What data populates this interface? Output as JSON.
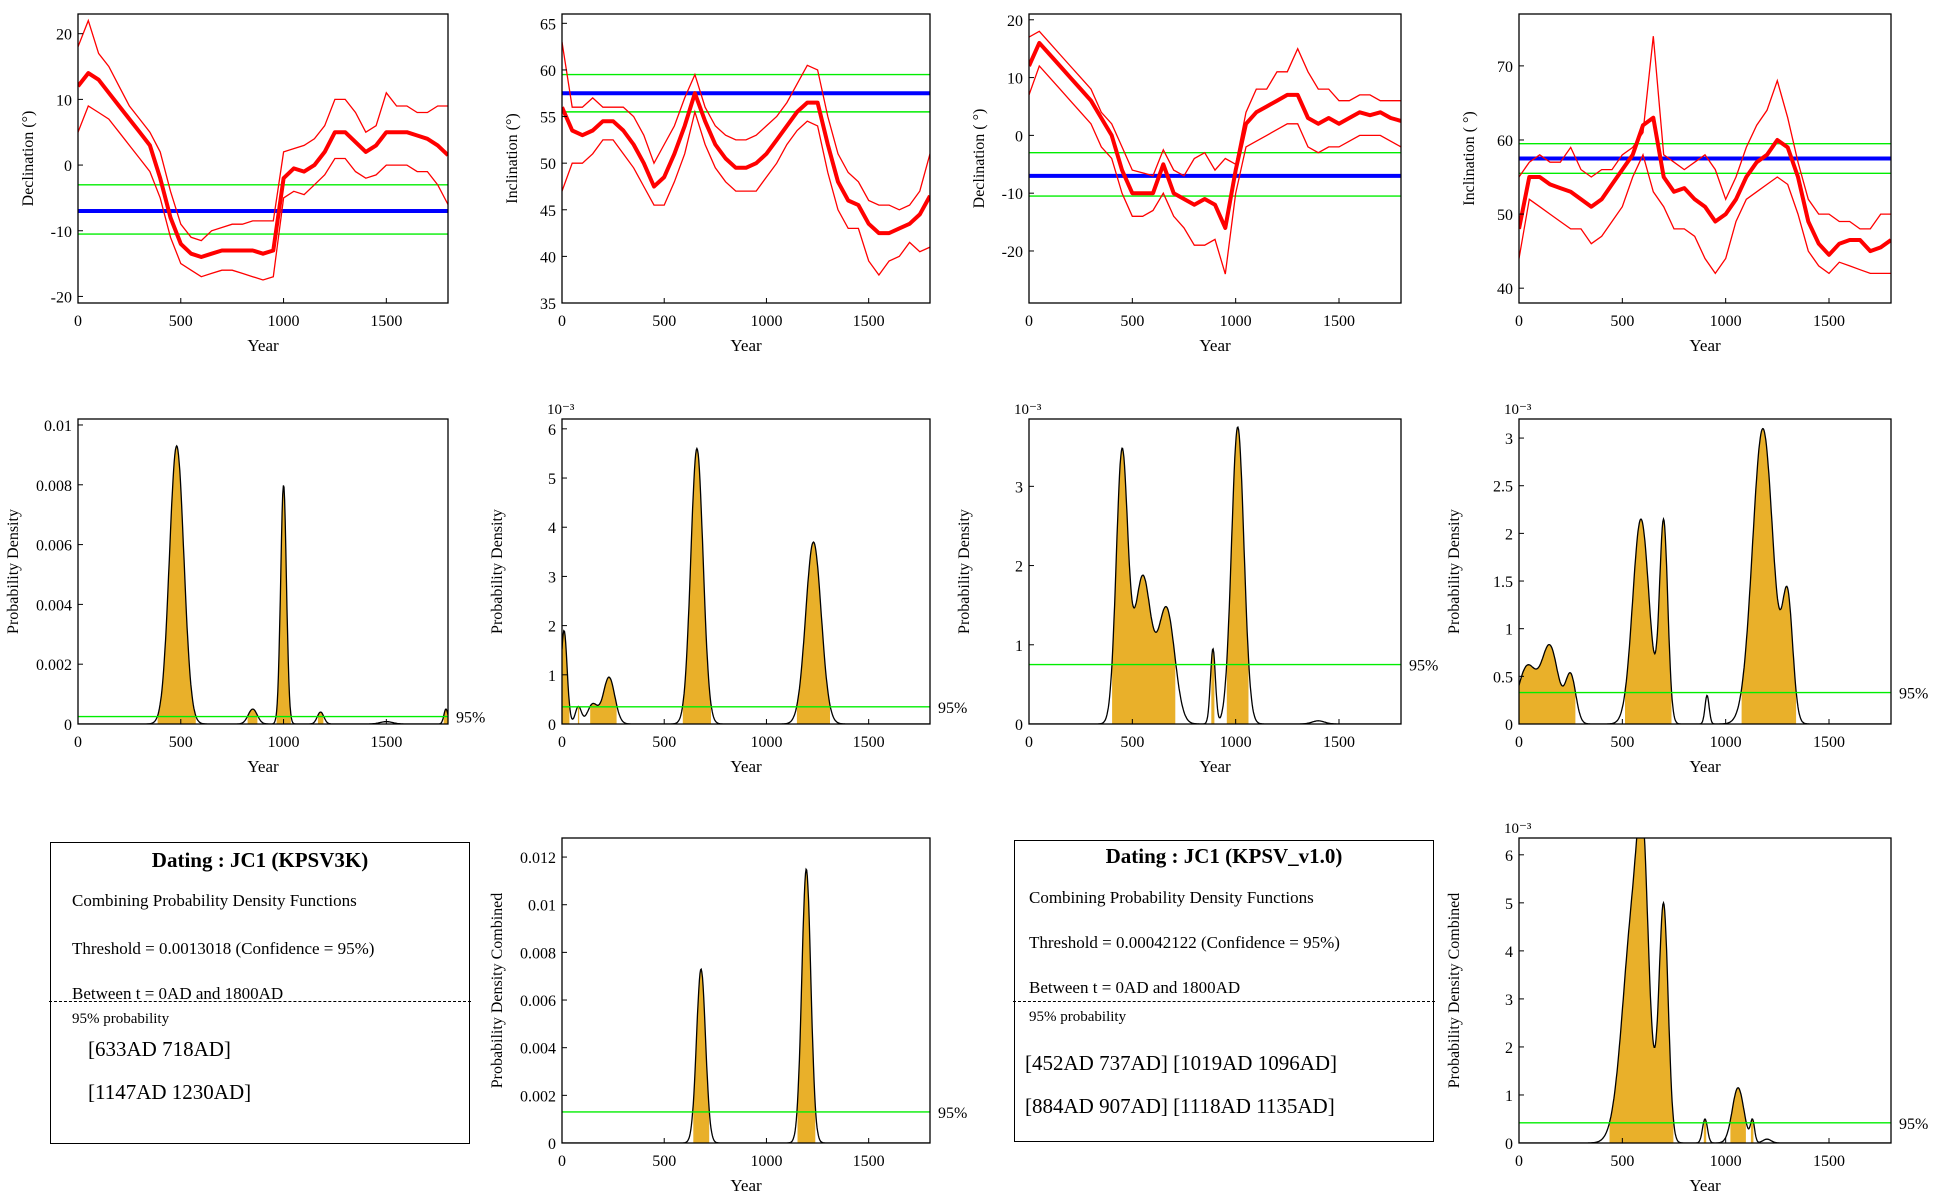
{
  "colors": {
    "curve": "#ff0000",
    "reference": "#0000ff",
    "bounds": "#00ee00",
    "fill": "#e9b02a",
    "outline": "#000000"
  },
  "charts": [
    {
      "id": "decl-1",
      "type": "line",
      "ylabel": "Declination (°)",
      "xlabel": "Year",
      "xlim": [
        0,
        1800
      ],
      "xticks": [
        0,
        500,
        1000,
        1500
      ],
      "ylim": [
        -21,
        23
      ],
      "yticks": [
        -20,
        -10,
        0,
        10,
        20
      ],
      "reference": -7,
      "bounds": [
        -3,
        -10.5
      ],
      "x": [
        0,
        50,
        100,
        150,
        200,
        250,
        300,
        350,
        400,
        450,
        500,
        550,
        600,
        650,
        700,
        750,
        800,
        850,
        900,
        950,
        1000,
        1050,
        1100,
        1150,
        1200,
        1250,
        1300,
        1350,
        1400,
        1450,
        1500,
        1550,
        1600,
        1650,
        1700,
        1750,
        1800
      ],
      "upper": [
        18,
        22,
        17,
        15,
        12,
        9,
        7,
        5,
        2,
        -4,
        -9,
        -11,
        -11.5,
        -10,
        -9.5,
        -9,
        -9,
        -8.5,
        -8.5,
        -8.5,
        2,
        2.5,
        3,
        4,
        6,
        10,
        10,
        8,
        5,
        6,
        11,
        9,
        9,
        8,
        8,
        9,
        9
      ],
      "mean": [
        12,
        14,
        13,
        11,
        9,
        7,
        5,
        3,
        -2,
        -8,
        -12,
        -13.5,
        -14,
        -13.5,
        -13,
        -13,
        -13,
        -13,
        -13.5,
        -13,
        -2,
        -0.5,
        -1,
        0,
        2,
        5,
        5,
        3.5,
        2,
        3,
        5,
        5,
        5,
        4.5,
        4,
        3,
        1.5
      ],
      "lower": [
        5,
        9,
        8,
        7,
        5,
        3,
        1,
        -1,
        -5,
        -11,
        -15,
        -16,
        -17,
        -16.5,
        -16,
        -16,
        -16.5,
        -17,
        -17.5,
        -17,
        -5,
        -4,
        -4.5,
        -3,
        -1.5,
        1,
        1,
        -1,
        -2,
        -1.5,
        0,
        0,
        0,
        -1,
        -1,
        -3,
        -6
      ]
    },
    {
      "id": "incl-1",
      "type": "line",
      "ylabel": "Inclination (°)",
      "xlabel": "Year",
      "xlim": [
        0,
        1800
      ],
      "xticks": [
        0,
        500,
        1000,
        1500
      ],
      "ylim": [
        35,
        66
      ],
      "yticks": [
        35,
        40,
        45,
        50,
        55,
        60,
        65
      ],
      "reference": 57.5,
      "bounds": [
        59.5,
        55.5
      ],
      "x": [
        0,
        50,
        100,
        150,
        200,
        250,
        300,
        350,
        400,
        450,
        500,
        550,
        600,
        650,
        700,
        750,
        800,
        850,
        900,
        950,
        1000,
        1050,
        1100,
        1150,
        1200,
        1250,
        1300,
        1350,
        1400,
        1450,
        1500,
        1550,
        1600,
        1650,
        1700,
        1750,
        1800
      ],
      "upper": [
        63,
        56,
        56,
        57,
        56,
        56,
        56,
        55,
        53,
        50,
        52,
        54,
        57,
        59.5,
        56,
        54,
        53,
        52.5,
        52.5,
        53,
        54,
        55,
        56.5,
        58.5,
        60.5,
        60,
        55,
        51,
        49,
        48,
        46,
        45.5,
        45.5,
        45,
        45.5,
        47,
        51
      ],
      "mean": [
        56,
        53.5,
        53,
        53.5,
        54.5,
        54.5,
        53.5,
        52,
        50,
        47.5,
        48.5,
        51,
        54,
        57.5,
        54.5,
        52,
        50.5,
        49.5,
        49.5,
        50,
        51,
        52.5,
        54,
        55.5,
        56.5,
        56.5,
        52,
        48,
        46,
        45.5,
        43.5,
        42.5,
        42.5,
        43,
        43.5,
        44.5,
        46.5
      ],
      "lower": [
        47,
        50,
        50,
        51,
        52.5,
        52.5,
        51,
        49.5,
        47.5,
        45.5,
        45.5,
        48,
        51,
        55.5,
        52,
        49.5,
        48,
        47,
        47,
        47,
        48.5,
        50,
        52,
        53.5,
        54.5,
        54,
        49,
        45,
        43,
        43,
        39.5,
        38,
        39.5,
        40,
        41.5,
        40.5,
        41
      ]
    },
    {
      "id": "decl-2",
      "type": "line",
      "ylabel": "Declination ( °)",
      "xlabel": "Year",
      "xlim": [
        0,
        1800
      ],
      "xticks": [
        0,
        500,
        1000,
        1500
      ],
      "ylim": [
        -29,
        21
      ],
      "yticks": [
        -20,
        -10,
        0,
        10,
        20
      ],
      "reference": -7,
      "bounds": [
        -3,
        -10.5
      ],
      "x": [
        0,
        50,
        100,
        150,
        200,
        250,
        300,
        350,
        400,
        450,
        500,
        550,
        600,
        650,
        700,
        750,
        800,
        850,
        900,
        950,
        1000,
        1050,
        1100,
        1150,
        1200,
        1250,
        1300,
        1350,
        1400,
        1450,
        1500,
        1550,
        1600,
        1650,
        1700,
        1750,
        1800
      ],
      "upper": [
        17,
        18,
        16,
        14,
        12,
        10,
        8,
        4,
        2,
        -2,
        -6,
        -6.5,
        -7,
        -2.5,
        -6,
        -7,
        -4,
        -3,
        -6,
        -4,
        -5,
        4,
        8,
        8,
        11,
        11,
        15,
        11,
        8,
        8,
        6,
        6,
        7,
        7,
        6,
        6,
        6
      ],
      "mean": [
        12,
        16,
        14,
        12,
        10,
        8,
        6,
        3,
        0,
        -6,
        -10,
        -10,
        -10,
        -5,
        -10,
        -11,
        -12,
        -11,
        -12,
        -16,
        -6,
        2,
        4,
        5,
        6,
        7,
        7,
        3,
        2,
        3,
        2,
        3,
        4,
        3.5,
        4,
        3,
        2.5
      ],
      "lower": [
        7,
        12,
        10,
        8,
        6,
        4,
        2,
        -2,
        -4,
        -10,
        -14,
        -14,
        -13,
        -10,
        -14,
        -16,
        -19,
        -19,
        -18,
        -24,
        -10,
        -2,
        -1,
        0,
        1,
        2,
        2,
        -2,
        -3,
        -2,
        -2,
        -1,
        0,
        0,
        0,
        -1,
        -2
      ]
    },
    {
      "id": "incl-2",
      "type": "line",
      "ylabel": "Inclination ( °)",
      "xlabel": "Year",
      "xlim": [
        0,
        1800
      ],
      "xticks": [
        0,
        500,
        1000,
        1500
      ],
      "ylim": [
        38,
        77
      ],
      "yticks": [
        40,
        50,
        60,
        70
      ],
      "reference": 57.5,
      "bounds": [
        59.5,
        55.5
      ],
      "x": [
        0,
        50,
        100,
        150,
        200,
        250,
        300,
        350,
        400,
        450,
        500,
        550,
        600,
        650,
        700,
        750,
        800,
        850,
        900,
        950,
        1000,
        1050,
        1100,
        1150,
        1200,
        1250,
        1300,
        1350,
        1400,
        1450,
        1500,
        1550,
        1600,
        1650,
        1700,
        1750,
        1800
      ],
      "upper": [
        55,
        57,
        58,
        57,
        57,
        59,
        56,
        55,
        56,
        56,
        58,
        59,
        61,
        74,
        58,
        57,
        56,
        57,
        58,
        56,
        52,
        55,
        59,
        62,
        64,
        68,
        63,
        57,
        52,
        50,
        50,
        49,
        49,
        48,
        48,
        50,
        50
      ],
      "mean": [
        48,
        55,
        55,
        54,
        53.5,
        53,
        52,
        51,
        52,
        54,
        56,
        58,
        62,
        63,
        55,
        53,
        53.5,
        52,
        51,
        49,
        50,
        52,
        55,
        57,
        58,
        60,
        59,
        55,
        49,
        46,
        44.5,
        46,
        46.5,
        46.5,
        45,
        45.5,
        46.5
      ],
      "lower": [
        44,
        52,
        51,
        50,
        49,
        48,
        48,
        46,
        47,
        49,
        51,
        55,
        58,
        53,
        51,
        48,
        48,
        47,
        44,
        42,
        44,
        49,
        52,
        53,
        54,
        55,
        54,
        50,
        45,
        43,
        42,
        43.5,
        43,
        42.5,
        42,
        42,
        42
      ]
    },
    {
      "id": "pdf-1",
      "type": "area",
      "ylabel": "Probability Density",
      "xlabel": "Year",
      "xlim": [
        0,
        1800
      ],
      "xticks": [
        0,
        500,
        1000,
        1500
      ],
      "ylim": [
        0,
        0.0102
      ],
      "yticks": [
        0,
        0.002,
        0.004,
        0.006,
        0.008,
        0.01
      ],
      "yticklabels": [
        "0",
        "0.002",
        "0.004",
        "0.006",
        "0.008",
        "0.01"
      ],
      "threshold": 0.00025,
      "threshold_label": "95%",
      "peaks": [
        [
          480,
          35,
          0.0093
        ],
        [
          1000,
          14,
          0.008
        ],
        [
          850,
          22,
          0.0005
        ],
        [
          1180,
          16,
          0.0004
        ],
        [
          1500,
          30,
          8e-05
        ],
        [
          1790,
          10,
          0.0005
        ]
      ]
    },
    {
      "id": "pdf-2",
      "type": "area",
      "ylabel": "Probability Density",
      "xlabel": "Year",
      "scale_label": "10⁻³",
      "xlim": [
        0,
        1800
      ],
      "xticks": [
        0,
        500,
        1000,
        1500
      ],
      "ylim": [
        0,
        6.2
      ],
      "yticks": [
        0,
        1,
        2,
        3,
        4,
        5,
        6
      ],
      "threshold": 0.35,
      "threshold_label": "95%",
      "peaks": [
        [
          10,
          15,
          1.9
        ],
        [
          80,
          15,
          0.35
        ],
        [
          150,
          25,
          0.4
        ],
        [
          230,
          28,
          0.95
        ],
        [
          660,
          30,
          5.6
        ],
        [
          1230,
          38,
          3.7
        ]
      ]
    },
    {
      "id": "pdf-3",
      "type": "area",
      "ylabel": "Probability Density",
      "xlabel": "Year",
      "scale_label": "10⁻³",
      "xlim": [
        0,
        1800
      ],
      "xticks": [
        0,
        500,
        1000,
        1500
      ],
      "ylim": [
        0,
        3.85
      ],
      "yticks": [
        0,
        1,
        2,
        3
      ],
      "threshold": 0.75,
      "threshold_label": "95%",
      "peaks": [
        [
          450,
          28,
          3.4
        ],
        [
          550,
          40,
          1.85
        ],
        [
          665,
          40,
          1.45
        ],
        [
          890,
          12,
          0.95
        ],
        [
          1010,
          30,
          3.75
        ],
        [
          1400,
          30,
          0.04
        ]
      ]
    },
    {
      "id": "pdf-4",
      "type": "area",
      "ylabel": "Probability Density",
      "xlabel": "Year",
      "scale_label": "10⁻³",
      "xlim": [
        0,
        1800
      ],
      "xticks": [
        0,
        500,
        1000,
        1500
      ],
      "ylim": [
        0,
        3.2
      ],
      "yticks": [
        0,
        0.5,
        1,
        1.5,
        2,
        2.5,
        3
      ],
      "threshold": 0.33,
      "threshold_label": "95%",
      "peaks": [
        [
          40,
          45,
          0.6
        ],
        [
          150,
          40,
          0.8
        ],
        [
          250,
          25,
          0.5
        ],
        [
          590,
          40,
          2.15
        ],
        [
          700,
          20,
          2.1
        ],
        [
          910,
          10,
          0.3
        ],
        [
          1180,
          50,
          3.1
        ],
        [
          1300,
          25,
          1.25
        ]
      ]
    },
    {
      "id": "comb-1",
      "type": "area",
      "ylabel": "Probability Density Combined",
      "xlabel": "Year",
      "xlim": [
        0,
        1800
      ],
      "xticks": [
        0,
        500,
        1000,
        1500
      ],
      "ylim": [
        0,
        0.0128
      ],
      "yticks": [
        0,
        0.002,
        0.004,
        0.006,
        0.008,
        0.01,
        0.012
      ],
      "yticklabels": [
        "0",
        "0.002",
        "0.004",
        "0.006",
        "0.008",
        "0.01",
        "0.012"
      ],
      "threshold": 0.0013018,
      "threshold_label": "95%",
      "peaks": [
        [
          680,
          22,
          0.0073
        ],
        [
          1195,
          22,
          0.0115
        ]
      ]
    },
    {
      "id": "comb-2",
      "type": "area",
      "ylabel": "Probability Density Combined",
      "xlabel": "Year",
      "scale_label": "10⁻³",
      "xlim": [
        0,
        1800
      ],
      "xticks": [
        0,
        500,
        1000,
        1500
      ],
      "ylim": [
        0,
        6.35
      ],
      "yticks": [
        0,
        1,
        2,
        3,
        4,
        5,
        6
      ],
      "threshold": 0.42,
      "threshold_label": "95%",
      "peaks": [
        [
          560,
          55,
          5.0
        ],
        [
          600,
          25,
          3.0
        ],
        [
          700,
          22,
          4.8
        ],
        [
          900,
          12,
          0.5
        ],
        [
          1060,
          28,
          1.15
        ],
        [
          1130,
          10,
          0.45
        ],
        [
          1200,
          20,
          0.08
        ]
      ]
    }
  ],
  "panels": [
    {
      "title": "Dating : JC1 (KPSV3K)",
      "lines": [
        "Combining Probability Density Functions",
        "Threshold = 0.0013018 (Confidence = 95%)",
        "Between t = 0AD and 1800AD"
      ],
      "prob_label": "95% probability",
      "intervals": [
        "[633AD   718AD]",
        "[1147AD   1230AD]"
      ]
    },
    {
      "title": "Dating : JC1 (KPSV_v1.0)",
      "lines": [
        "Combining Probability Density Functions",
        "Threshold = 0.00042122 (Confidence = 95%)",
        "Between t = 0AD and 1800AD"
      ],
      "prob_label": "95% probability",
      "intervals": [
        "[452AD   737AD]   [1019AD   1096AD]",
        "[884AD   907AD]   [1118AD   1135AD]"
      ]
    }
  ]
}
